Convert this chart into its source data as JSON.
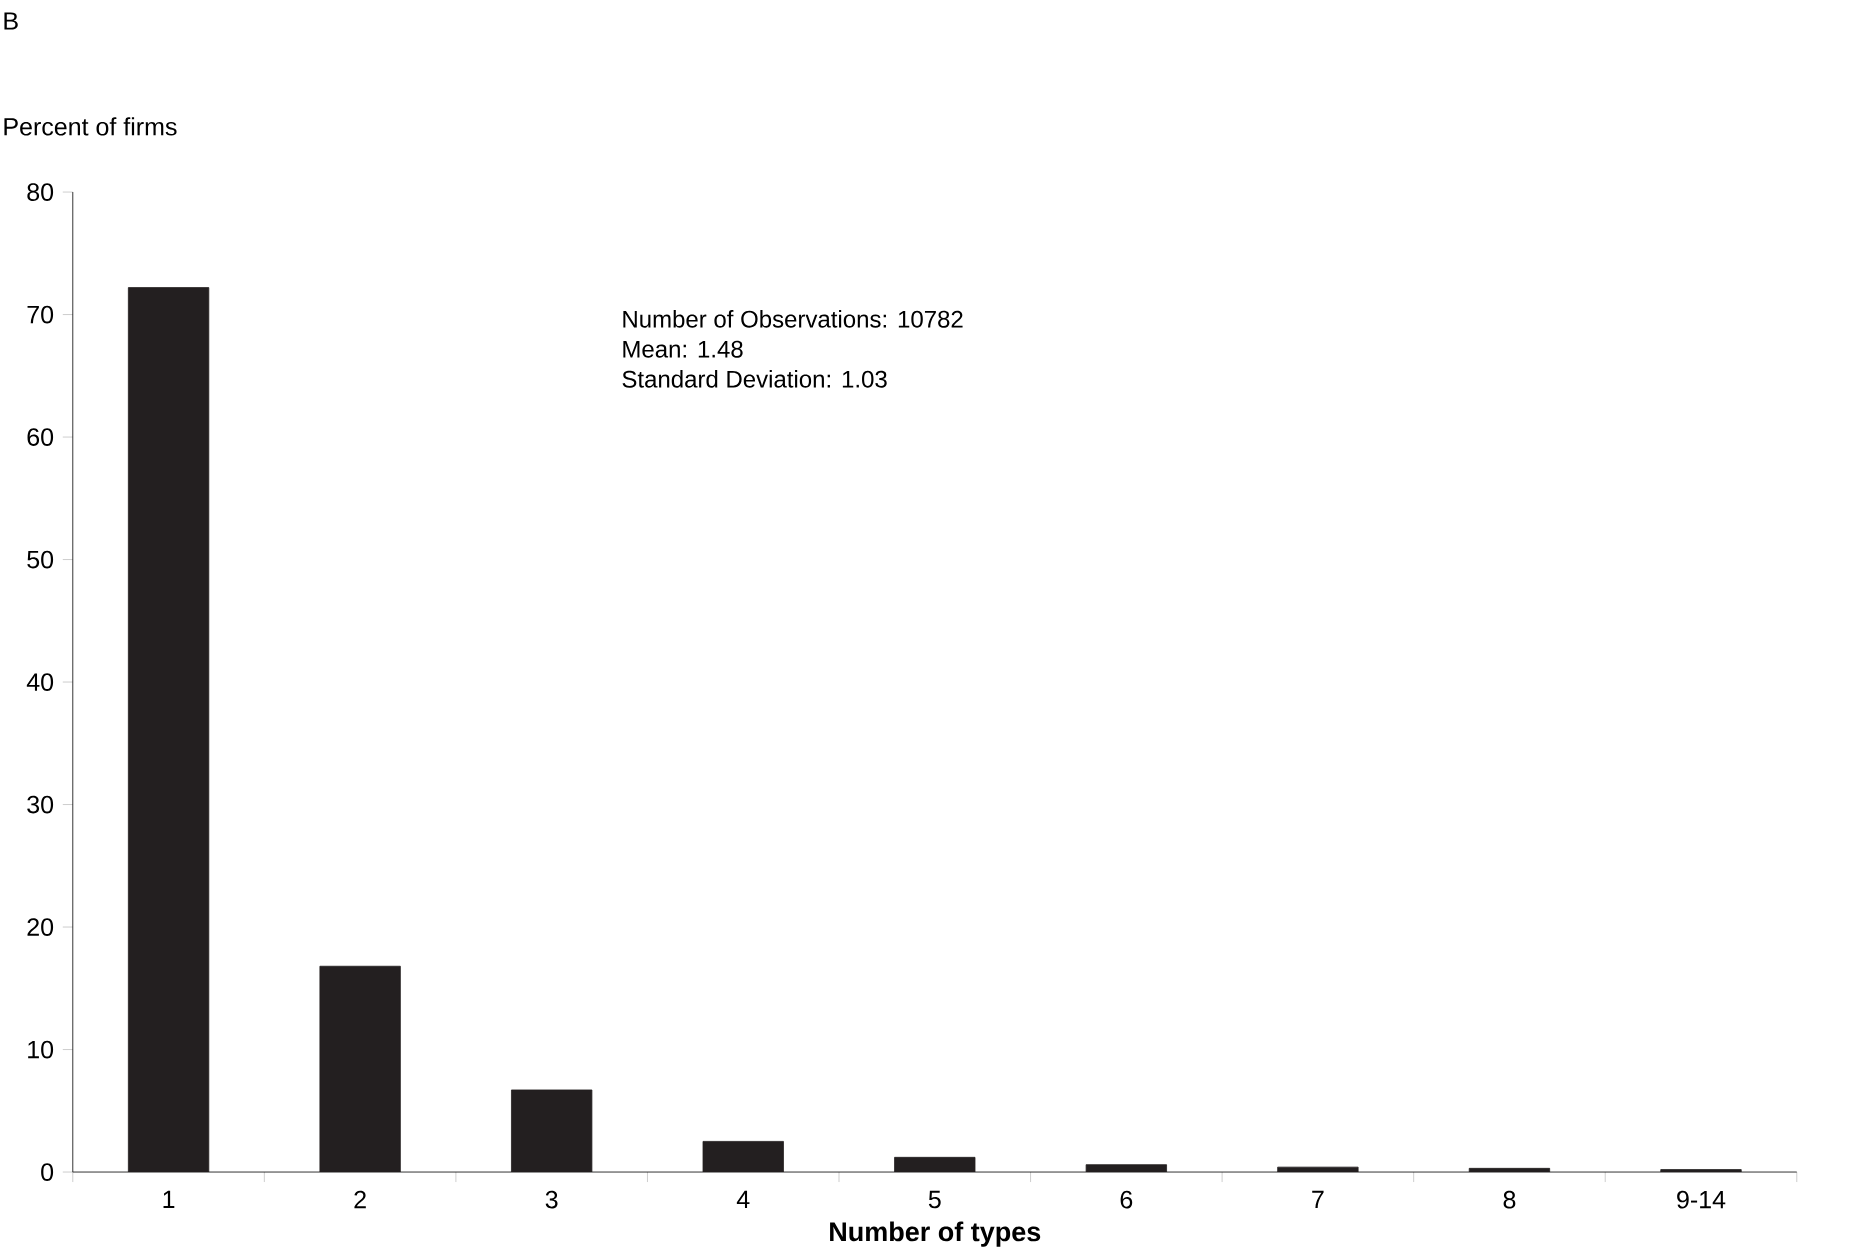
{
  "chart_data": {
    "type": "bar",
    "title": "B",
    "ylabel": "Percent of firms",
    "xlabel": "Number of types",
    "categories": [
      "1",
      "2",
      "3",
      "4",
      "5",
      "6",
      "7",
      "8",
      "9-14"
    ],
    "values": [
      72.2,
      16.8,
      6.7,
      2.5,
      1.2,
      0.6,
      0.4,
      0.3,
      0.2
    ],
    "color": "#231f20",
    "ylim": [
      0,
      80
    ],
    "yticks": [
      0,
      10,
      20,
      30,
      40,
      50,
      60,
      70,
      80
    ],
    "annotations": [
      "Number of Observations: 10782",
      "Mean: 1.48",
      "Standard Deviation: 1.03"
    ]
  }
}
